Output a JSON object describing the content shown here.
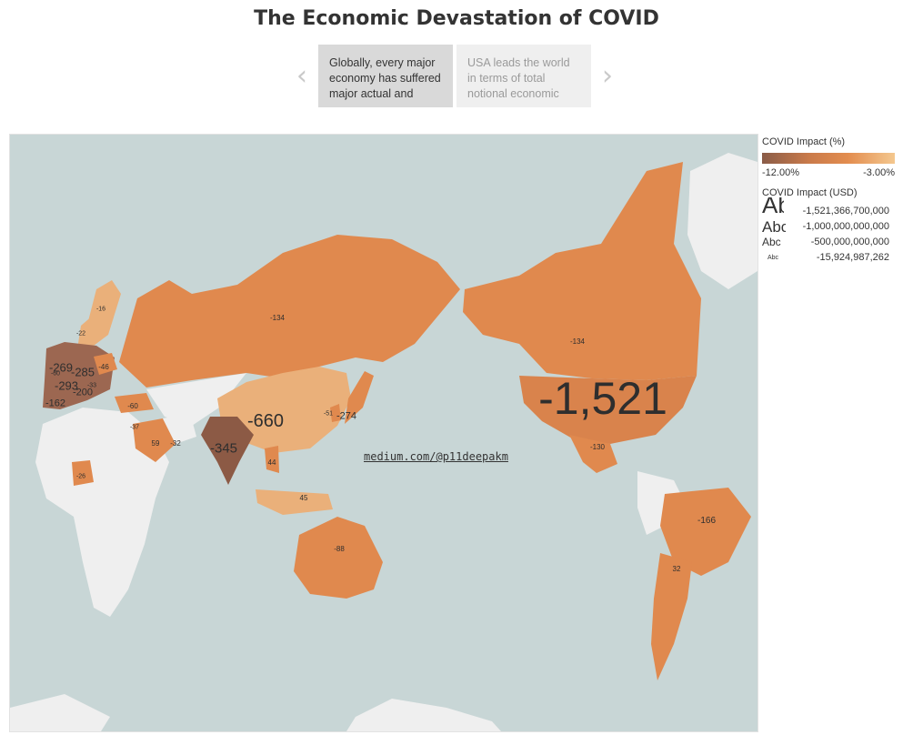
{
  "title": "The Economic Devastation of COVID",
  "story": {
    "prev_arrow": "‹",
    "next_arrow": "›",
    "cards": [
      {
        "text": "Globally, every major economy has suffered major actual and"
      },
      {
        "text": "USA leads the world in terms of total notional economic"
      }
    ]
  },
  "credit": "medium.com/@p11deepakm",
  "legend": {
    "pct_title": "COVID Impact  (%)",
    "pct_min": "-12.00%",
    "pct_max": "-3.00%",
    "usd_title": "COVID Impact  (USD)",
    "sizes": [
      {
        "glyph": "Abc",
        "value": "-1,521,366,700,000"
      },
      {
        "glyph": "Abc",
        "value": "-1,000,000,000,000"
      },
      {
        "glyph": "Abc",
        "value": "-500,000,000,000"
      },
      {
        "glyph": "Abc",
        "value": "-15,924,987,262"
      }
    ]
  },
  "colors": {
    "ocean": "#c8d6d6",
    "land_nodata": "#efefef",
    "orange": "#e0894e",
    "orange_mid": "#d9834c",
    "light": "#eab07a",
    "dark": "#9c6751",
    "brown": "#8c5a45"
  },
  "map_labels": [
    {
      "id": "usa",
      "text": "-1,521"
    },
    {
      "id": "china",
      "text": "-660"
    },
    {
      "id": "india",
      "text": "-345"
    },
    {
      "id": "japan",
      "text": "-274"
    },
    {
      "id": "uk",
      "text": "-269"
    },
    {
      "id": "france",
      "text": "-293"
    },
    {
      "id": "germany",
      "text": "-285"
    },
    {
      "id": "italy",
      "text": "-200"
    },
    {
      "id": "spain",
      "text": "-162"
    },
    {
      "id": "brazil",
      "text": "-166"
    },
    {
      "id": "russia",
      "text": "-134"
    },
    {
      "id": "canada",
      "text": "-134"
    },
    {
      "id": "mexico",
      "text": "-130"
    },
    {
      "id": "australia",
      "text": "-88"
    },
    {
      "id": "turkey",
      "text": "-60"
    },
    {
      "id": "saudi",
      "text": "59"
    },
    {
      "id": "poland",
      "text": "-46"
    },
    {
      "id": "indonesia",
      "text": "45"
    },
    {
      "id": "thailand",
      "text": "44"
    },
    {
      "id": "argentina",
      "text": "32"
    },
    {
      "id": "iran",
      "text": "-32"
    },
    {
      "id": "egypt",
      "text": "-37"
    },
    {
      "id": "nigeria",
      "text": "-26"
    },
    {
      "id": "sweden",
      "text": "-22"
    },
    {
      "id": "norway",
      "text": "-16"
    },
    {
      "id": "korea",
      "text": "-51"
    },
    {
      "id": "netherlands",
      "text": "-60"
    },
    {
      "id": "switzerland",
      "text": "-33"
    }
  ]
}
